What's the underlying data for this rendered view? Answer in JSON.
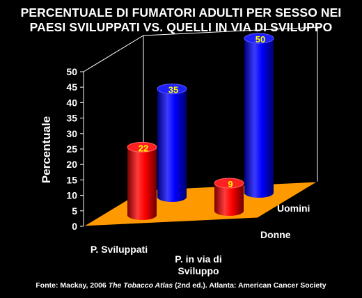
{
  "chart_data": {
    "type": "bar",
    "title_lines": [
      "PERCENTUALE DI FUMATORI ADULTI PER SESSO NEI",
      "PAESI SVILUPPATI VS. QUELLI   IN VIA DI SVILUPPO"
    ],
    "ylabel": "Percentuale",
    "ylim": [
      0,
      50
    ],
    "yticks": [
      0,
      5,
      10,
      15,
      20,
      25,
      30,
      35,
      40,
      45,
      50
    ],
    "categories": [
      "P. Sviluppati",
      "P. in via di Sviluppo"
    ],
    "category_label_lines": [
      [
        "P. Sviluppati"
      ],
      [
        "P. in via di",
        "Sviluppo"
      ]
    ],
    "series": [
      {
        "name": "Donne",
        "values": [
          22,
          9
        ],
        "color": "#ff0000"
      },
      {
        "name": "Uomini",
        "values": [
          35,
          50
        ],
        "color": "#0000ff"
      }
    ],
    "data_label_color": "#ffff00",
    "floor_color": "#ff9900",
    "grid": false
  },
  "source": {
    "prefix": "Fonte: Mackay, 2006 ",
    "book": "The Tobacco Atlas",
    "suffix": " (2nd ed.). Atlanta: American Cancer Society"
  }
}
